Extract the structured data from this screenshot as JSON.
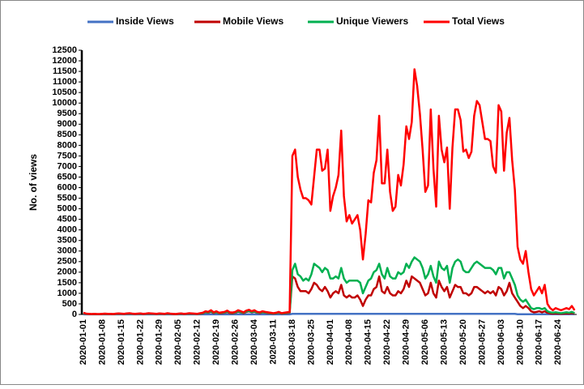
{
  "chart_data": {
    "type": "line",
    "y_label": "No. of views",
    "ylim": [
      0,
      12500
    ],
    "yticks": [
      0,
      500,
      1000,
      1500,
      2000,
      2500,
      3000,
      3500,
      4000,
      4500,
      5000,
      5500,
      6000,
      6500,
      7000,
      7500,
      8000,
      8500,
      9000,
      9500,
      10000,
      10500,
      11000,
      11500,
      12000,
      12500
    ],
    "grid": false,
    "legend": "top",
    "categories": [
      "2020-01-01",
      null,
      null,
      null,
      null,
      null,
      null,
      "2020-01-08",
      null,
      null,
      null,
      null,
      null,
      null,
      "2020-01-15",
      null,
      null,
      null,
      null,
      null,
      null,
      "2020-01-22",
      null,
      null,
      null,
      null,
      null,
      null,
      "2020-01-29",
      null,
      null,
      null,
      null,
      null,
      null,
      "2020-02-05",
      null,
      null,
      null,
      null,
      null,
      null,
      "2020-02-12",
      null,
      null,
      null,
      null,
      null,
      null,
      "2020-02-19",
      null,
      null,
      null,
      null,
      null,
      null,
      "2020-02-26",
      null,
      null,
      null,
      null,
      null,
      null,
      "2020-03-04",
      null,
      null,
      null,
      null,
      null,
      null,
      "2020-03-11",
      null,
      null,
      null,
      null,
      null,
      null,
      "2020-03-18",
      null,
      null,
      null,
      null,
      null,
      null,
      "2020-03-25",
      null,
      null,
      null,
      null,
      null,
      null,
      "2020-04-01",
      null,
      null,
      null,
      null,
      null,
      null,
      "2020-04-08",
      null,
      null,
      null,
      null,
      null,
      null,
      "2020-04-15",
      null,
      null,
      null,
      null,
      null,
      null,
      "2020-04-22",
      null,
      null,
      null,
      null,
      null,
      null,
      "2020-04-29",
      null,
      null,
      null,
      null,
      null,
      null,
      "2020-05-06",
      null,
      null,
      null,
      null,
      null,
      null,
      "2020-05-13",
      null,
      null,
      null,
      null,
      null,
      null,
      "2020-05-20",
      null,
      null,
      null,
      null,
      null,
      null,
      "2020-05-27",
      null,
      null,
      null,
      null,
      null,
      null,
      "2020-06-03",
      null,
      null,
      null,
      null,
      null,
      null,
      "2020-06-10",
      null,
      null,
      null,
      null,
      null,
      null,
      "2020-06-17",
      null,
      null,
      null,
      null,
      null,
      null,
      "2020-06-24",
      null,
      null,
      null,
      null,
      null,
      null
    ],
    "series": [
      {
        "name": "Inside Views",
        "color": "#4472c4",
        "values": [
          5,
          5,
          5,
          5,
          5,
          5,
          5,
          5,
          5,
          5,
          5,
          5,
          5,
          5,
          5,
          5,
          5,
          5,
          5,
          5,
          5,
          5,
          5,
          5,
          5,
          5,
          5,
          5,
          5,
          5,
          5,
          5,
          5,
          5,
          5,
          5,
          5,
          5,
          5,
          5,
          5,
          5,
          5,
          5,
          5,
          5,
          5,
          5,
          5,
          5,
          5,
          5,
          5,
          5,
          5,
          5,
          5,
          5,
          5,
          5,
          5,
          5,
          5,
          5,
          5,
          5,
          5,
          5,
          5,
          5,
          5,
          5,
          5,
          5,
          5,
          5,
          5,
          30,
          30,
          30,
          30,
          30,
          30,
          30,
          30,
          30,
          30,
          30,
          30,
          30,
          30,
          30,
          30,
          30,
          30,
          30,
          30,
          30,
          30,
          30,
          30,
          30,
          30,
          30,
          30,
          30,
          30,
          30,
          30,
          30,
          30,
          30,
          30,
          30,
          30,
          30,
          30,
          30,
          30,
          30,
          30,
          30,
          30,
          30,
          30,
          30,
          30,
          30,
          30,
          30,
          30,
          30,
          30,
          30,
          30,
          30,
          30,
          30,
          30,
          30,
          30,
          30,
          30,
          30,
          30,
          30,
          30,
          30,
          30,
          30,
          30,
          30,
          30,
          30,
          30,
          30,
          30,
          30,
          30,
          30,
          10,
          10,
          10,
          10,
          10,
          10,
          10,
          10,
          10,
          10,
          10,
          10,
          10,
          10,
          10,
          10,
          10,
          10,
          10,
          10,
          10,
          10
        ]
      },
      {
        "name": "Mobile Views",
        "color": "#c00000",
        "values": [
          50,
          25,
          20,
          10,
          20,
          10,
          10,
          20,
          25,
          20,
          20,
          10,
          25,
          30,
          25,
          20,
          30,
          35,
          25,
          20,
          25,
          30,
          20,
          25,
          35,
          30,
          25,
          20,
          30,
          25,
          20,
          35,
          25,
          20,
          10,
          25,
          30,
          20,
          25,
          35,
          30,
          25,
          20,
          35,
          50,
          100,
          80,
          130,
          60,
          100,
          50,
          60,
          80,
          120,
          60,
          50,
          80,
          130,
          100,
          60,
          120,
          150,
          100,
          130,
          80,
          60,
          100,
          80,
          60,
          50,
          40,
          50,
          80,
          40,
          50,
          60,
          80,
          1800,
          1700,
          1300,
          1100,
          1100,
          1100,
          1000,
          1200,
          1500,
          1400,
          1200,
          1100,
          1300,
          1100,
          800,
          1000,
          1100,
          1000,
          1400,
          900,
          800,
          900,
          800,
          800,
          900,
          700,
          400,
          700,
          900,
          900,
          1200,
          1300,
          1800,
          1100,
          1000,
          1300,
          1000,
          900,
          900,
          1100,
          1000,
          1200,
          1600,
          1300,
          1800,
          1700,
          1600,
          1500,
          1200,
          900,
          1000,
          1500,
          1000,
          800,
          1600,
          1300,
          1100,
          1300,
          800,
          1100,
          1400,
          1300,
          1300,
          1000,
          1000,
          900,
          1000,
          1300,
          1300,
          1200,
          1100,
          1000,
          1100,
          1000,
          1100,
          900,
          1300,
          1200,
          900,
          1100,
          1500,
          1000,
          800,
          600,
          400,
          300,
          400,
          300,
          150,
          100,
          120,
          150,
          100,
          150,
          80,
          50,
          40,
          50,
          40,
          30,
          40,
          50,
          40,
          60,
          30
        ]
      },
      {
        "name": "Unique Viewers",
        "color": "#00b050",
        "values": [
          60,
          30,
          25,
          15,
          25,
          15,
          15,
          25,
          30,
          25,
          25,
          15,
          30,
          40,
          30,
          25,
          40,
          45,
          30,
          25,
          30,
          40,
          25,
          30,
          45,
          40,
          30,
          25,
          40,
          30,
          25,
          45,
          30,
          25,
          15,
          30,
          40,
          25,
          30,
          45,
          40,
          30,
          25,
          45,
          60,
          110,
          90,
          150,
          80,
          110,
          60,
          80,
          90,
          140,
          80,
          70,
          90,
          150,
          110,
          80,
          140,
          170,
          110,
          150,
          90,
          80,
          110,
          90,
          80,
          60,
          50,
          60,
          90,
          50,
          60,
          80,
          100,
          2100,
          2400,
          1900,
          1800,
          1600,
          1700,
          1600,
          1900,
          2400,
          2300,
          2200,
          2000,
          2200,
          2100,
          1700,
          1700,
          1800,
          1700,
          2200,
          1700,
          1500,
          1600,
          1600,
          1600,
          1600,
          1500,
          1000,
          1300,
          1600,
          1700,
          2000,
          2100,
          2400,
          1900,
          1700,
          2200,
          1800,
          1700,
          1700,
          2000,
          1900,
          2000,
          2400,
          2200,
          2500,
          2700,
          2600,
          2500,
          2200,
          1700,
          1900,
          2300,
          1800,
          1500,
          2500,
          2200,
          2100,
          2300,
          1500,
          2200,
          2500,
          2600,
          2500,
          2100,
          2000,
          2000,
          2200,
          2400,
          2500,
          2400,
          2300,
          2200,
          2200,
          2200,
          2100,
          1900,
          2200,
          2200,
          1700,
          2000,
          2000,
          1700,
          1400,
          900,
          700,
          600,
          700,
          500,
          300,
          250,
          300,
          300,
          250,
          300,
          150,
          100,
          80,
          100,
          80,
          60,
          80,
          100,
          80,
          120,
          60
        ]
      },
      {
        "name": "Total Views",
        "color": "#ff0000",
        "values": [
          80,
          40,
          30,
          20,
          30,
          20,
          20,
          30,
          40,
          30,
          30,
          20,
          40,
          50,
          40,
          30,
          50,
          60,
          40,
          30,
          40,
          50,
          30,
          40,
          60,
          50,
          40,
          30,
          50,
          40,
          30,
          60,
          40,
          30,
          20,
          40,
          50,
          30,
          40,
          60,
          50,
          40,
          30,
          60,
          80,
          150,
          120,
          200,
          100,
          150,
          80,
          100,
          120,
          180,
          100,
          90,
          120,
          200,
          150,
          100,
          180,
          220,
          150,
          200,
          120,
          100,
          150,
          120,
          100,
          80,
          60,
          80,
          120,
          60,
          80,
          100,
          120,
          7500,
          7800,
          6500,
          5900,
          5500,
          5500,
          5400,
          5200,
          6500,
          7800,
          7800,
          6800,
          6900,
          7800,
          4900,
          5600,
          6000,
          6600,
          8700,
          5600,
          4400,
          4700,
          4300,
          4500,
          4700,
          4000,
          2600,
          3800,
          5400,
          5300,
          6700,
          7300,
          9400,
          6200,
          6200,
          7800,
          5800,
          4900,
          5100,
          6600,
          6100,
          7100,
          8900,
          8300,
          9100,
          11600,
          10800,
          9500,
          7800,
          5800,
          6100,
          9700,
          6900,
          5100,
          9400,
          7800,
          7200,
          7900,
          5000,
          7900,
          9700,
          9700,
          9200,
          7700,
          7800,
          7400,
          7700,
          9400,
          10100,
          9900,
          9100,
          8300,
          8300,
          8200,
          7000,
          6700,
          9900,
          9600,
          6800,
          8600,
          9300,
          7300,
          5900,
          3200,
          2600,
          2400,
          3000,
          2000,
          1200,
          900,
          1100,
          1300,
          1000,
          1400,
          500,
          300,
          200,
          300,
          250,
          200,
          250,
          300,
          250,
          400,
          200
        ]
      }
    ]
  }
}
